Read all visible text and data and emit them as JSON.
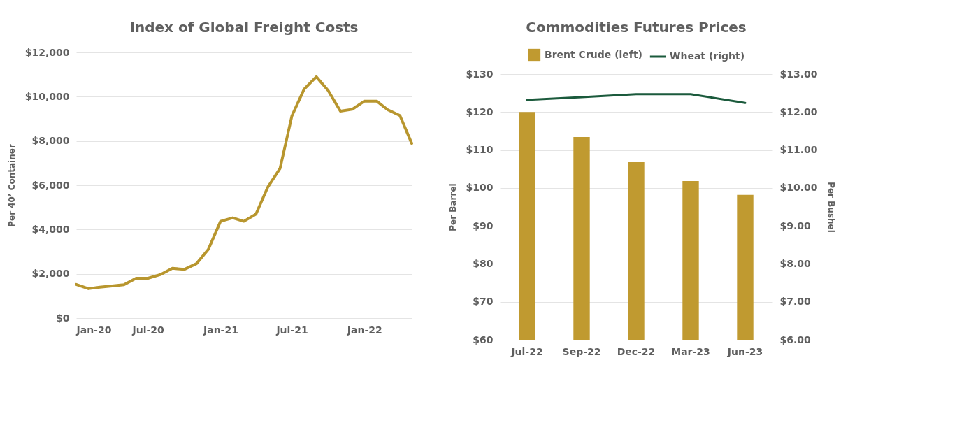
{
  "chart_data": [
    {
      "type": "line",
      "title": "Index of Global Freight Costs",
      "ylabel": "Per 40’ Container",
      "x": [
        "2020-01",
        "2020-02",
        "2020-03",
        "2020-04",
        "2020-05",
        "2020-06",
        "2020-07",
        "2020-08",
        "2020-09",
        "2020-10",
        "2020-11",
        "2020-12",
        "2021-01",
        "2021-02",
        "2021-03",
        "2021-04",
        "2021-05",
        "2021-06",
        "2021-07",
        "2021-08",
        "2021-09",
        "2021-10",
        "2021-11",
        "2021-12",
        "2022-01",
        "2022-02",
        "2022-03",
        "2022-04",
        "2022-05"
      ],
      "series": [
        {
          "color": "#b8962e",
          "values": [
            1520,
            1330,
            1400,
            1450,
            1510,
            1800,
            1800,
            1960,
            2250,
            2200,
            2460,
            3100,
            4370,
            4530,
            4370,
            4700,
            5920,
            6760,
            9130,
            10340,
            10900,
            10280,
            9350,
            9430,
            9800,
            9800,
            9410,
            9150,
            7890
          ]
        }
      ],
      "xlim": [
        "2020-01",
        "2022-05"
      ],
      "xticks": [
        {
          "value": "2020-01",
          "label": "Jan-20"
        },
        {
          "value": "2020-07",
          "label": "Jul-20"
        },
        {
          "value": "2021-01",
          "label": "Jan-21"
        },
        {
          "value": "2021-07",
          "label": "Jul-21"
        },
        {
          "value": "2022-01",
          "label": "Jan-22"
        }
      ],
      "ylim": [
        0,
        12000
      ],
      "yticks": [
        {
          "value": 0,
          "label": "$0"
        },
        {
          "value": 2000,
          "label": "$2,000"
        },
        {
          "value": 4000,
          "label": "$4,000"
        },
        {
          "value": 6000,
          "label": "$6,000"
        },
        {
          "value": 8000,
          "label": "$8,000"
        },
        {
          "value": 10000,
          "label": "$10,000"
        },
        {
          "value": 12000,
          "label": "$12,000"
        }
      ],
      "grid": "y"
    },
    {
      "type": "bar",
      "title": "Commodities Futures Prices",
      "ylabel": "Per Barrel",
      "y2label": "Per Bushel",
      "categories": [
        "Jul-22",
        "Sep-22",
        "Dec-22",
        "Mar-23",
        "Jun-23"
      ],
      "series": [
        {
          "name": "Brent Crude (left)",
          "color": "#c09a30",
          "values": [
            120,
            113.4,
            106.8,
            101.8,
            98.2
          ]
        },
        {
          "name": "Wheat (right)",
          "type": "line",
          "axis": "y2",
          "color": "#1b5a3c",
          "values": [
            12.32,
            12.39,
            12.47,
            12.47,
            12.24
          ]
        }
      ],
      "ylim": [
        60,
        130
      ],
      "yticks": [
        {
          "value": 60,
          "label": "$60"
        },
        {
          "value": 70,
          "label": "$70"
        },
        {
          "value": 80,
          "label": "$80"
        },
        {
          "value": 90,
          "label": "$90"
        },
        {
          "value": 100,
          "label": "$100"
        },
        {
          "value": 110,
          "label": "$110"
        },
        {
          "value": 120,
          "label": "$120"
        },
        {
          "value": 130,
          "label": "$130"
        }
      ],
      "y2lim": [
        6,
        13
      ],
      "y2ticks": [
        {
          "value": 6,
          "label": "$6.00"
        },
        {
          "value": 7,
          "label": "$7.00"
        },
        {
          "value": 8,
          "label": "$8.00"
        },
        {
          "value": 9,
          "label": "$9.00"
        },
        {
          "value": 10,
          "label": "$10.00"
        },
        {
          "value": 11,
          "label": "$11.00"
        },
        {
          "value": 12,
          "label": "$12.00"
        },
        {
          "value": 13,
          "label": "$13.00"
        }
      ],
      "grid": "y",
      "legend": "top"
    }
  ]
}
